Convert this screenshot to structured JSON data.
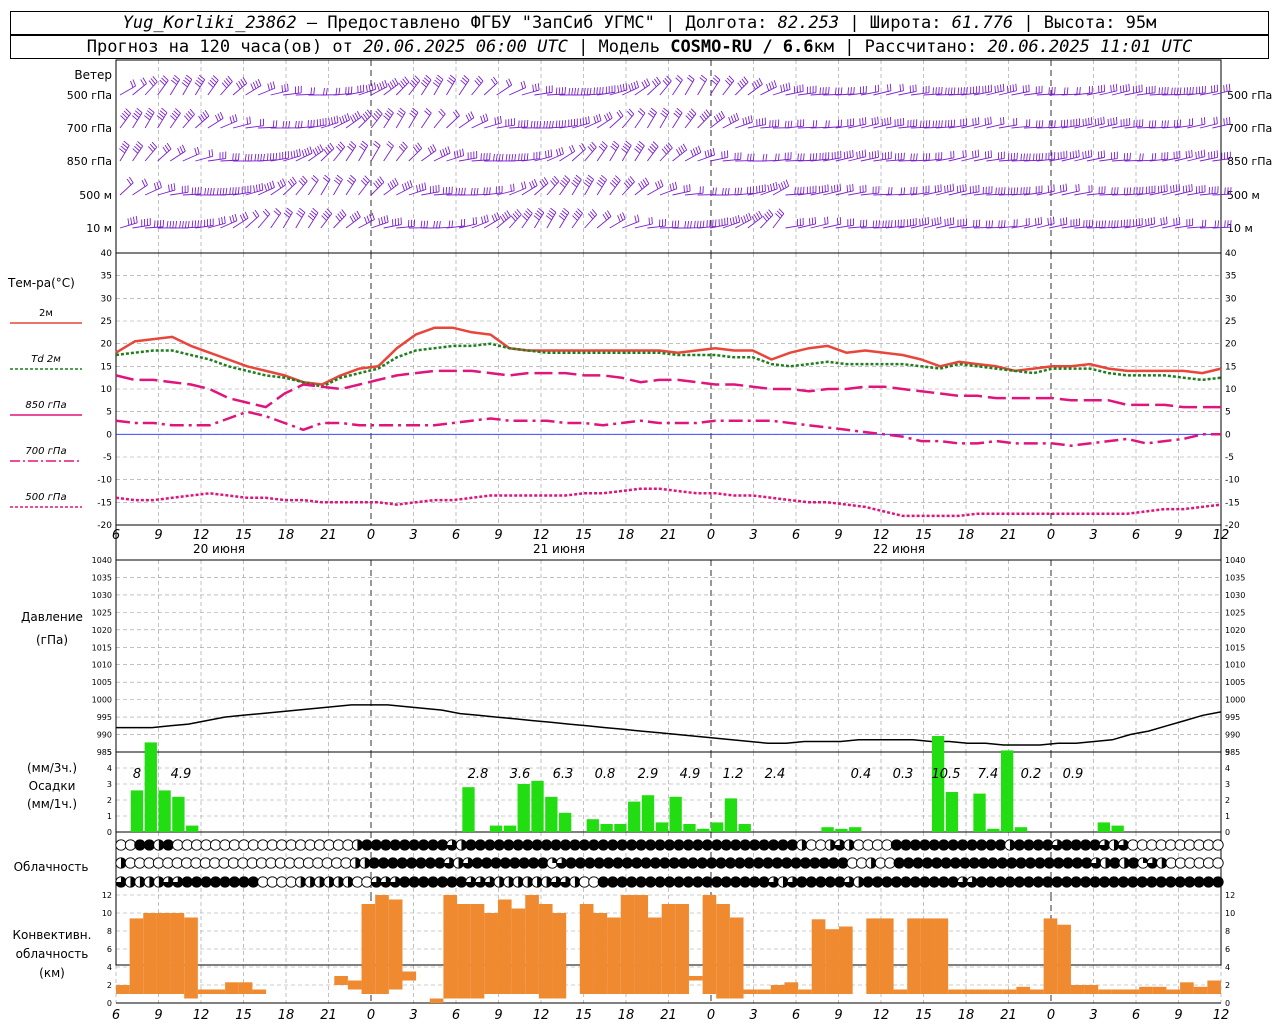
{
  "header": {
    "station": "Yug_Korliki_23862",
    "provided": " – Предоставлено ФГБУ \"ЗапСиб УГМС\" | Долгота: ",
    "lon": "82.253",
    "lat_label": " | Широта: ",
    "lat": "61.776",
    "alt": " | Высота: 95м",
    "fc_prefix": "Прогноз на 120 часа(ов) от ",
    "init": "20.06.2025 06:00 UTC",
    "model_prefix": " | Модель ",
    "model": "COSMO-RU / 6.6",
    "model_unit": "км | Рассчитано: ",
    "computed": "20.06.2025 11:01 UTC"
  },
  "colors": {
    "wind": "#7b1fd0",
    "t2m": "#e8463a",
    "td2m": "#1f7f1f",
    "t850": "#e0147c",
    "t700": "#e0147c",
    "t500": "#e0147c",
    "zero": "#2030ff",
    "pressure": "#000000",
    "precip": "#22dd11",
    "convective": "#ef8a30",
    "grid": "#9a9a9a"
  },
  "labels": {
    "wind_title": "Ветер",
    "wind_levels": [
      "500 гПа",
      "700 гПа",
      "850 гПа",
      "500 м",
      "10  м"
    ],
    "temp_title": "Тем-ра(°С)",
    "temp_legend": [
      "2м",
      "Td  2м",
      "850 гПа",
      "700 гПа",
      "500 гПа"
    ],
    "pressure_title": "Давление",
    "pressure_unit": "(гПа)",
    "precip_unit1": "(мм/3ч.)",
    "precip_title": "Осадки",
    "precip_unit2": "(мм/1ч.)",
    "cloud_title": "Облачность",
    "conv_title1": "Конвективн.",
    "conv_title2": "облачность",
    "conv_unit": "(км)"
  },
  "chart_data": {
    "type": "line",
    "x_hour_labels": [
      "6",
      "9",
      "12",
      "15",
      "18",
      "21",
      "0",
      "3",
      "6",
      "9",
      "12",
      "15",
      "18",
      "21",
      "0",
      "3",
      "6",
      "9",
      "12",
      "15",
      "18",
      "21",
      "0",
      "3",
      "6",
      "9",
      "12"
    ],
    "date_labels": [
      "20 июня",
      "21 июня",
      "22 июня"
    ],
    "temperature": {
      "ylim": [
        -20,
        40
      ],
      "yticks": [
        -20,
        -15,
        -10,
        -5,
        0,
        5,
        10,
        15,
        20,
        25,
        30,
        35,
        40
      ],
      "series": [
        {
          "name": "2м",
          "values": [
            18,
            20.5,
            21,
            21.5,
            19.5,
            18,
            16.5,
            15,
            14,
            13,
            11.5,
            11,
            13,
            14.5,
            15,
            19,
            22,
            23.5,
            23.5,
            22.5,
            22,
            19,
            18.5,
            18.5,
            18.5,
            18.5,
            18.5,
            18.5,
            18.5,
            18.5,
            18,
            18.5,
            19,
            18.5,
            18.5,
            16.5,
            18,
            19,
            19.5,
            18,
            18.5,
            18,
            17.5,
            16.5,
            15,
            16,
            15.5,
            15,
            14,
            14.5,
            15,
            15,
            15.5,
            14.5,
            14,
            14,
            14,
            14,
            13.5,
            14.5
          ]
        },
        {
          "name": "Td 2м",
          "values": [
            17.5,
            18,
            18.5,
            18.5,
            17.5,
            16.5,
            15,
            14,
            13,
            12.5,
            11.5,
            10.5,
            12.5,
            13.5,
            14.5,
            17,
            18.5,
            19,
            19.5,
            19.5,
            20,
            19,
            18.5,
            18,
            18,
            18,
            18,
            18,
            18,
            18,
            17.5,
            17.5,
            17.5,
            17,
            17,
            15.5,
            15,
            15.5,
            16,
            15.5,
            15.5,
            15.5,
            15.5,
            15,
            14.5,
            15.5,
            15,
            14.5,
            14,
            13.5,
            14.5,
            14.5,
            14.5,
            13.5,
            13,
            13,
            13,
            12.5,
            12,
            12.5
          ]
        },
        {
          "name": "850 гПа",
          "values": [
            13,
            12,
            12,
            11.5,
            11,
            10,
            8,
            7,
            6,
            9,
            11,
            10.5,
            10,
            11,
            12,
            13,
            13.5,
            14,
            14,
            14,
            13.5,
            13,
            13.5,
            13.5,
            13.5,
            13,
            13,
            12.5,
            11.5,
            12,
            12,
            11.5,
            11,
            11,
            10.5,
            10,
            10,
            9.5,
            10,
            10,
            10.5,
            10.5,
            10,
            9.5,
            9,
            8.5,
            8.5,
            8,
            8,
            8,
            8,
            7.5,
            7.5,
            7.5,
            6.5,
            6.5,
            6.5,
            6,
            6,
            6
          ]
        },
        {
          "name": "700 гПа",
          "values": [
            3,
            2.5,
            2.5,
            2,
            2,
            2,
            3.5,
            5,
            4,
            2.5,
            1,
            2.5,
            2.5,
            2,
            2,
            2,
            2,
            2,
            2.5,
            3,
            3.5,
            3,
            3,
            3,
            2.5,
            2.5,
            2,
            2.5,
            3,
            2.5,
            2.5,
            2.5,
            3,
            3,
            3,
            3,
            2.5,
            2,
            1.5,
            1,
            0.5,
            0,
            -0.5,
            -1.5,
            -1.5,
            -2,
            -2,
            -1.5,
            -2,
            -2,
            -2,
            -2.5,
            -2,
            -1.5,
            -1,
            -2,
            -1.5,
            -1,
            0,
            0
          ]
        },
        {
          "name": "500 гПа",
          "values": [
            -14,
            -14.5,
            -14.5,
            -14,
            -13.5,
            -13,
            -13.5,
            -14,
            -14,
            -14.5,
            -14.5,
            -15,
            -15,
            -15,
            -15,
            -15.5,
            -15,
            -14.5,
            -14.5,
            -14,
            -13.5,
            -13.5,
            -13.5,
            -13.5,
            -13.5,
            -13,
            -13,
            -12.5,
            -12,
            -12,
            -12.5,
            -13,
            -13,
            -13.5,
            -13.5,
            -14,
            -14.5,
            -15,
            -15,
            -15.5,
            -16,
            -17,
            -18,
            -18,
            -18,
            -18,
            -17.5,
            -17.5,
            -17.5,
            -17.5,
            -17.5,
            -17.5,
            -17.5,
            -17.5,
            -17.5,
            -17,
            -16.5,
            -16.5,
            -16,
            -15.5
          ]
        }
      ]
    },
    "pressure": {
      "ylim": [
        985,
        1040
      ],
      "yticks": [
        985,
        990,
        995,
        1000,
        1005,
        1010,
        1015,
        1020,
        1025,
        1030,
        1035,
        1040
      ],
      "values": [
        992,
        992,
        992,
        992.5,
        993,
        994,
        995,
        995.5,
        996,
        996.5,
        997,
        997.5,
        998,
        998.5,
        998.5,
        998.5,
        998,
        997.5,
        997,
        996,
        995.5,
        995,
        994.5,
        994,
        993.5,
        993,
        992.5,
        992,
        991.5,
        991,
        990.5,
        990,
        989.5,
        989,
        988.5,
        988,
        987.5,
        987.5,
        988,
        988,
        988,
        988.5,
        988.5,
        988.5,
        988.5,
        988,
        988,
        987.5,
        987.5,
        987,
        987,
        987,
        987.5,
        987.5,
        988,
        988.5,
        990,
        991,
        992.5,
        994,
        995.5,
        996.5
      ]
    },
    "precip_totals": [
      "8",
      "4.9",
      "2.8",
      "3.6",
      "6.3",
      "0.8",
      "2.9",
      "4.9",
      "1.2",
      "2.4",
      "0.4",
      "0.3",
      "10.5",
      "7.4",
      "0.2",
      "0.9"
    ],
    "precip": {
      "ylim": [
        0,
        5
      ],
      "yticks": [
        0,
        1,
        2,
        3,
        4,
        5
      ],
      "values": [
        0,
        2.6,
        5.6,
        2.6,
        2.2,
        0.4,
        0,
        0,
        0,
        0,
        0,
        0,
        0,
        0,
        0,
        0,
        0,
        0,
        0,
        0,
        0,
        0,
        0,
        0,
        0,
        2.8,
        0,
        0.4,
        0.4,
        3,
        3.2,
        2.2,
        1.2,
        0,
        0.8,
        0.5,
        0.5,
        1.9,
        2.3,
        0.6,
        2.2,
        0.5,
        0.2,
        0.6,
        2.1,
        0.5,
        0,
        0,
        0,
        0,
        0,
        0.3,
        0.2,
        0.3,
        0,
        0,
        0,
        0,
        0,
        6,
        2.5,
        0,
        2.4,
        0.2,
        5.1,
        0.3,
        0,
        0,
        0,
        0,
        0,
        0.6,
        0.4,
        0,
        0,
        0,
        0,
        0,
        0,
        0
      ]
    },
    "cloud_cover_octas": {
      "rows": [
        [
          0,
          0,
          8,
          8,
          4,
          8,
          0,
          0,
          0,
          0,
          0,
          0,
          0,
          0,
          0,
          0,
          0,
          0,
          0,
          0,
          0,
          0,
          0,
          0,
          0,
          4,
          8,
          8,
          8,
          8,
          8,
          8,
          8,
          8,
          8,
          6,
          4,
          8,
          8,
          8,
          8,
          8,
          8,
          8,
          8,
          8,
          8,
          8,
          8,
          8,
          8,
          8,
          8,
          8,
          8,
          8,
          8,
          8,
          8,
          8,
          8,
          8,
          8,
          8,
          8,
          8,
          8,
          8,
          8,
          8,
          8,
          8,
          4,
          0,
          0,
          4,
          6,
          4,
          0,
          0,
          0,
          0,
          8,
          8,
          8,
          8,
          8,
          8,
          8,
          8,
          8,
          8,
          8,
          8,
          4,
          8,
          8,
          8,
          8,
          6,
          8,
          8,
          8,
          8,
          6,
          4,
          6,
          0,
          0,
          0,
          0,
          0,
          0,
          0,
          0,
          0,
          0
        ],
        [
          4,
          0,
          0,
          0,
          0,
          0,
          0,
          0,
          0,
          0,
          0,
          0,
          0,
          0,
          0,
          0,
          0,
          0,
          0,
          0,
          0,
          0,
          0,
          0,
          0,
          4,
          4,
          8,
          8,
          8,
          8,
          8,
          8,
          8,
          8,
          6,
          4,
          6,
          8,
          8,
          8,
          8,
          8,
          8,
          8,
          8,
          2,
          6,
          8,
          8,
          8,
          8,
          8,
          8,
          8,
          8,
          8,
          8,
          8,
          8,
          8,
          8,
          8,
          8,
          8,
          8,
          8,
          8,
          8,
          8,
          8,
          8,
          8,
          8,
          8,
          8,
          8,
          8,
          0,
          0,
          4,
          0,
          0,
          8,
          8,
          8,
          8,
          8,
          8,
          8,
          8,
          8,
          8,
          8,
          8,
          8,
          8,
          8,
          8,
          8,
          8,
          8,
          8,
          8,
          6,
          4,
          8,
          4,
          8,
          2,
          6,
          4,
          0,
          0,
          0,
          0,
          0,
          0
        ],
        [
          6,
          4,
          4,
          4,
          4,
          6,
          6,
          8,
          8,
          8,
          8,
          8,
          8,
          8,
          8,
          0,
          0,
          0,
          0,
          4,
          4,
          4,
          4,
          4,
          4,
          0,
          0,
          6,
          6,
          6,
          8,
          8,
          8,
          8,
          8,
          8,
          8,
          6,
          6,
          6,
          4,
          4,
          4,
          4,
          4,
          4,
          6,
          6,
          4,
          0,
          0,
          8,
          8,
          8,
          8,
          8,
          8,
          8,
          8,
          8,
          8,
          8,
          8,
          8,
          8,
          8,
          8,
          8,
          8,
          6,
          4,
          6,
          8,
          8,
          8,
          8,
          8,
          6,
          4,
          8,
          8,
          8,
          8,
          8,
          8,
          8,
          8,
          8,
          8,
          6,
          6,
          8,
          8,
          8,
          8,
          8,
          8,
          8,
          8,
          8,
          8,
          8,
          8,
          8,
          8,
          8,
          8,
          8,
          8,
          8,
          8,
          8,
          8,
          8,
          8,
          8,
          8
        ]
      ]
    },
    "convective_cloud": {
      "ylim": [
        0,
        12
      ],
      "yticks": [
        0,
        2,
        4,
        6,
        8,
        10,
        12
      ],
      "bars": [
        [
          1,
          2
        ],
        [
          1,
          9.4
        ],
        [
          1,
          10
        ],
        [
          1,
          10
        ],
        [
          1,
          10
        ],
        [
          0.5,
          9.5
        ],
        [
          1,
          1.5
        ],
        [
          1,
          1.5
        ],
        [
          1,
          2.3
        ],
        [
          1,
          2.3
        ],
        [
          1,
          1.5
        ],
        [
          0,
          0
        ],
        [
          0,
          0
        ],
        [
          0,
          0
        ],
        [
          0,
          0
        ],
        [
          0,
          0
        ],
        [
          2,
          3
        ],
        [
          1.5,
          2.5
        ],
        [
          1,
          11
        ],
        [
          1,
          12
        ],
        [
          1.5,
          11.5
        ],
        [
          2.5,
          3.5
        ],
        [
          0,
          0
        ],
        [
          0,
          0.5
        ],
        [
          0.5,
          12
        ],
        [
          0.5,
          11
        ],
        [
          0.5,
          11
        ],
        [
          1,
          10
        ],
        [
          1,
          11.5
        ],
        [
          1,
          10.5
        ],
        [
          1,
          12
        ],
        [
          0.5,
          11
        ],
        [
          0.5,
          10
        ],
        [
          0,
          0
        ],
        [
          1,
          11
        ],
        [
          1,
          10
        ],
        [
          1,
          9.5
        ],
        [
          1,
          12
        ],
        [
          1,
          12
        ],
        [
          1,
          9.5
        ],
        [
          1,
          11
        ],
        [
          1,
          11
        ],
        [
          2.5,
          3
        ],
        [
          1,
          12
        ],
        [
          0.5,
          11
        ],
        [
          0.5,
          9.5
        ],
        [
          1,
          1.5
        ],
        [
          1,
          1.5
        ],
        [
          1,
          2
        ],
        [
          1,
          2.3
        ],
        [
          1,
          1.5
        ],
        [
          1,
          9.3
        ],
        [
          1,
          8.2
        ],
        [
          1,
          8.5
        ],
        [
          0,
          0
        ],
        [
          1,
          9.4
        ],
        [
          1,
          9.4
        ],
        [
          1,
          1.5
        ],
        [
          1,
          9.4
        ],
        [
          1,
          9.4
        ],
        [
          1,
          9.4
        ],
        [
          1,
          1.5
        ],
        [
          1,
          1.5
        ],
        [
          1,
          1.5
        ],
        [
          1,
          1.5
        ],
        [
          1,
          1.5
        ],
        [
          1,
          1.8
        ],
        [
          1,
          1.5
        ],
        [
          1,
          9.4
        ],
        [
          1,
          8.7
        ],
        [
          1,
          2
        ],
        [
          1,
          2
        ],
        [
          1,
          1.5
        ],
        [
          1,
          1.5
        ],
        [
          1,
          1.5
        ],
        [
          1,
          1.8
        ],
        [
          1,
          1.8
        ],
        [
          1,
          1.5
        ],
        [
          1,
          2.3
        ],
        [
          1,
          1.8
        ],
        [
          1,
          2.5
        ]
      ]
    }
  }
}
